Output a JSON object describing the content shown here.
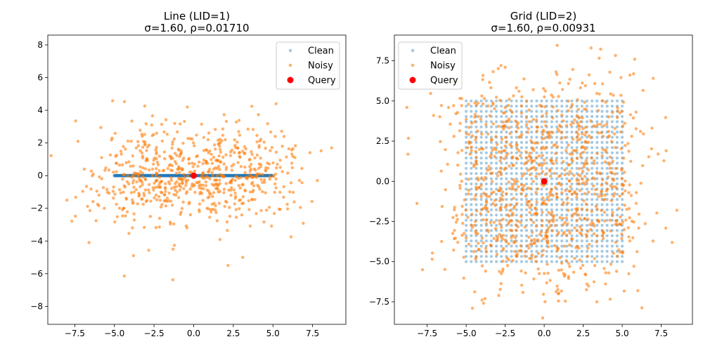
{
  "chart_data": [
    {
      "type": "scatter",
      "title": "Line (LID=1)",
      "subtitle": "σ=1.60, ρ=0.01710",
      "xlabel": "",
      "ylabel": "",
      "xlim": [
        -9.2,
        9.6
      ],
      "ylim": [
        -9.1,
        8.6
      ],
      "xticks": [
        -7.5,
        -5.0,
        -2.5,
        0.0,
        2.5,
        5.0,
        7.5
      ],
      "xtick_labels": [
        "−7.5",
        "−5.0",
        "−2.5",
        "0.0",
        "2.5",
        "5.0",
        "7.5"
      ],
      "yticks": [
        -8,
        -6,
        -4,
        -2,
        0,
        2,
        4,
        6,
        8
      ],
      "ytick_labels": [
        "−8",
        "−6",
        "−4",
        "−2",
        "0",
        "2",
        "4",
        "6",
        "8"
      ],
      "legend": {
        "position": "top-right",
        "entries": [
          "Clean",
          "Noisy",
          "Query"
        ]
      },
      "grid": false,
      "series": [
        {
          "name": "Clean",
          "color": "#1f77b4",
          "kind": "line-points",
          "x_range": [
            -5,
            5
          ],
          "y": 0,
          "count": 1000
        },
        {
          "name": "Noisy",
          "color": "#ff7f0e",
          "kind": "gaussian-noise",
          "base": "line",
          "sigma": 1.6,
          "count": 700,
          "points_sample": [
            [
              -8.0,
              -1.5
            ],
            [
              8.7,
              1.7
            ],
            [
              -6.6,
              -4.1
            ],
            [
              -0.4,
              4.2
            ],
            [
              5.2,
              4.4
            ],
            [
              -1.3,
              -4.5
            ],
            [
              3.1,
              -5.0
            ],
            [
              -3.8,
              -4.9
            ],
            [
              7.8,
              -0.3
            ],
            [
              -7.3,
              2.1
            ]
          ]
        },
        {
          "name": "Query",
          "color": "#ff0000",
          "points": [
            [
              0,
              0
            ]
          ]
        }
      ]
    },
    {
      "type": "scatter",
      "title": "Grid (LID=2)",
      "subtitle": "σ=1.60, ρ=0.00931",
      "xlabel": "",
      "ylabel": "",
      "xlim": [
        -9.6,
        9.5
      ],
      "ylim": [
        -8.9,
        9.1
      ],
      "xticks": [
        -7.5,
        -5.0,
        -2.5,
        0.0,
        2.5,
        5.0,
        7.5
      ],
      "xtick_labels": [
        "−7.5",
        "−5.0",
        "−2.5",
        "0.0",
        "2.5",
        "5.0",
        "7.5"
      ],
      "yticks": [
        -7.5,
        -5.0,
        -2.5,
        0.0,
        2.5,
        5.0,
        7.5
      ],
      "ytick_labels": [
        "−7.5",
        "−5.0",
        "−2.5",
        "0.0",
        "2.5",
        "5.0",
        "7.5"
      ],
      "legend": {
        "position": "top-left",
        "entries": [
          "Clean",
          "Noisy",
          "Query"
        ]
      },
      "grid": false,
      "series": [
        {
          "name": "Clean",
          "color": "#1f77b4",
          "kind": "grid-points",
          "x_range": [
            -5,
            5
          ],
          "y_range": [
            -5,
            5
          ],
          "n_per_side": 32
        },
        {
          "name": "Noisy",
          "color": "#ff7f0e",
          "kind": "gaussian-noise",
          "base": "grid",
          "sigma": 1.6,
          "count": 1000,
          "points_sample": [
            [
              -8.8,
              4.6
            ],
            [
              8.5,
              -1.8
            ],
            [
              -0.1,
              -8.5
            ],
            [
              3.0,
              8.3
            ],
            [
              -7.8,
              -5.5
            ],
            [
              8.2,
              -3.8
            ],
            [
              -2.5,
              7.1
            ],
            [
              5.8,
              7.6
            ],
            [
              -4.6,
              -7.9
            ],
            [
              6.0,
              -6.8
            ]
          ]
        },
        {
          "name": "Query",
          "color": "#ff0000",
          "points": [
            [
              0,
              0
            ]
          ]
        }
      ]
    }
  ]
}
